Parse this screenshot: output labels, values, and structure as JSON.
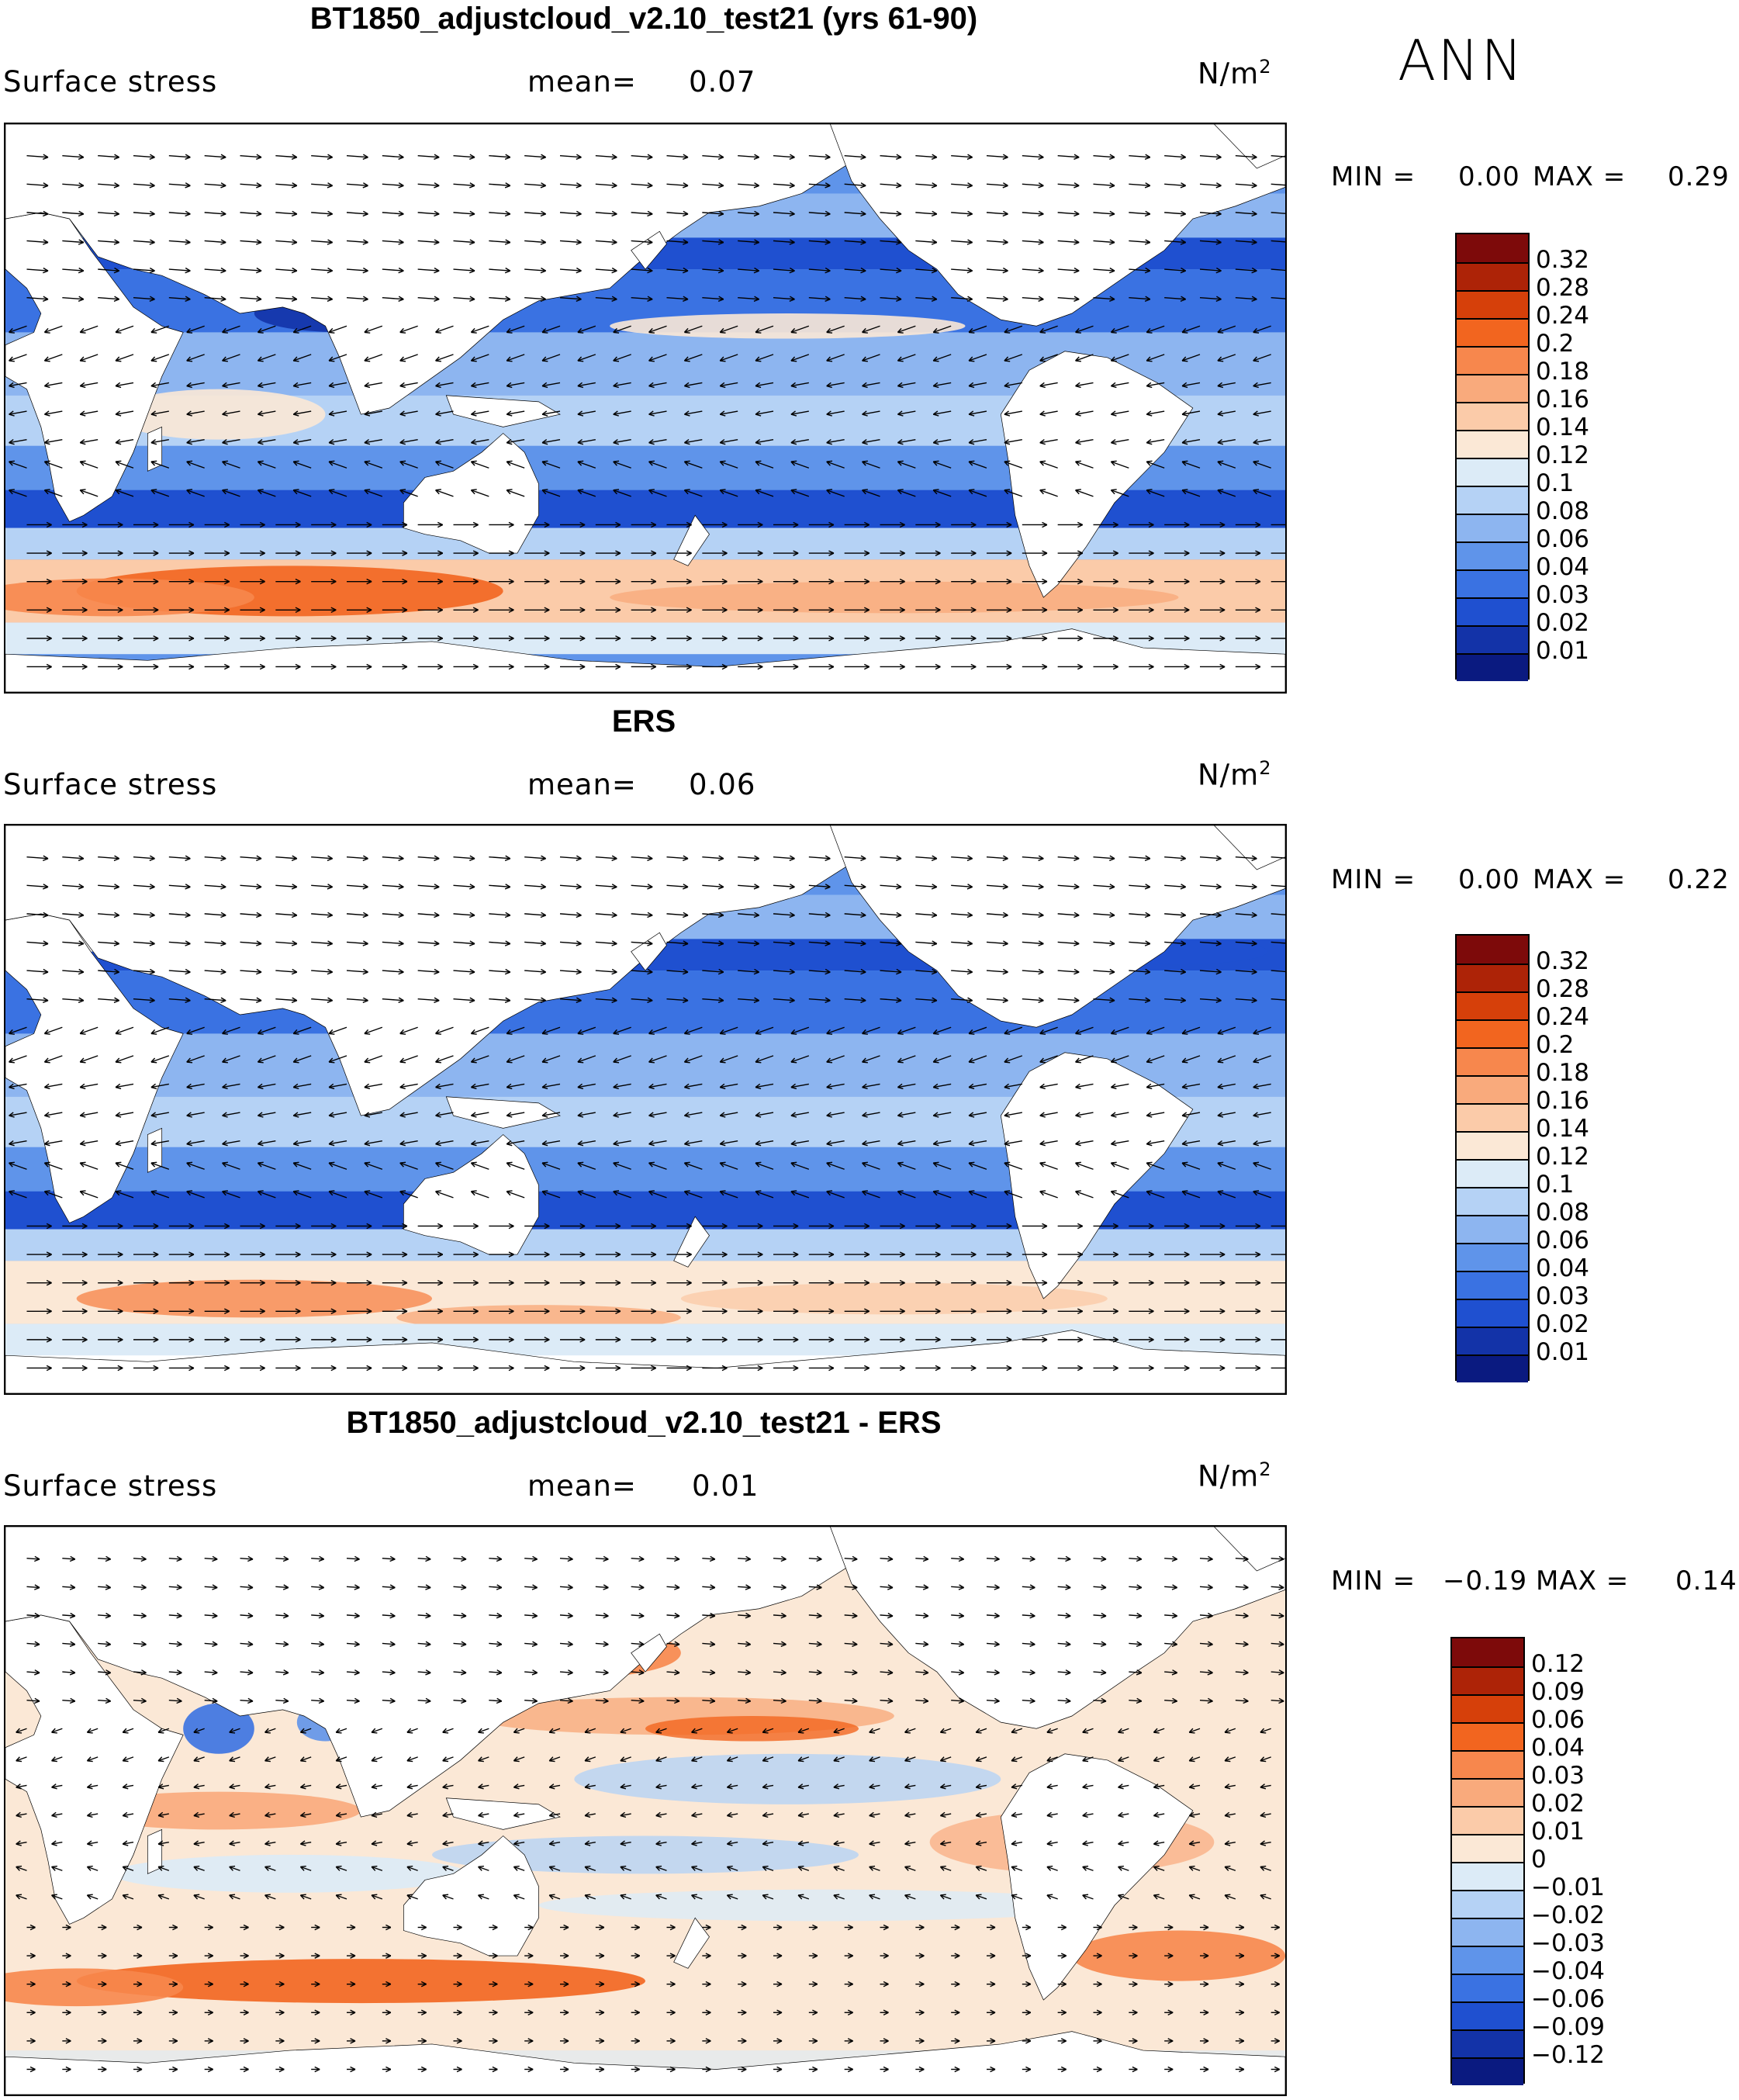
{
  "season": "ANN",
  "panels": [
    {
      "title": "BT1850_adjustcloud_v2.10_test21 (yrs 61-90)",
      "variable": "Surface stress",
      "mean_label": "mean=",
      "mean_value": "0.07",
      "units": "N/m",
      "units_sup": "2",
      "min_label": "MIN =",
      "min_value": "0.00",
      "max_label": "MAX =",
      "max_value": "0.29",
      "palette": "sequential",
      "colorbar_ticks": [
        "0.32",
        "0.28",
        "0.24",
        "0.2",
        "0.18",
        "0.16",
        "0.14",
        "0.12",
        "0.1",
        "0.08",
        "0.06",
        "0.04",
        "0.03",
        "0.02",
        "0.01"
      ],
      "colors": [
        "#7d0a0a",
        "#ad2307",
        "#d6400a",
        "#f2651f",
        "#f7874d",
        "#f9aa7c",
        "#fbcba9",
        "#fbe8d6",
        "#dcebf7",
        "#b5d2f5",
        "#8db5f0",
        "#5f94ea",
        "#3a72e2",
        "#1f50d0",
        "#1333a8",
        "#0a1a80"
      ]
    },
    {
      "title": "ERS",
      "variable": "Surface stress",
      "mean_label": "mean=",
      "mean_value": "0.06",
      "units": "N/m",
      "units_sup": "2",
      "min_label": "MIN =",
      "min_value": "0.00",
      "max_label": "MAX =",
      "max_value": "0.22",
      "palette": "sequential",
      "colorbar_ticks": [
        "0.32",
        "0.28",
        "0.24",
        "0.2",
        "0.18",
        "0.16",
        "0.14",
        "0.12",
        "0.1",
        "0.08",
        "0.06",
        "0.04",
        "0.03",
        "0.02",
        "0.01"
      ],
      "colors": [
        "#7d0a0a",
        "#ad2307",
        "#d6400a",
        "#f2651f",
        "#f7874d",
        "#f9aa7c",
        "#fbcba9",
        "#fbe8d6",
        "#dcebf7",
        "#b5d2f5",
        "#8db5f0",
        "#5f94ea",
        "#3a72e2",
        "#1f50d0",
        "#1333a8",
        "#0a1a80"
      ]
    },
    {
      "title": "BT1850_adjustcloud_v2.10_test21 - ERS",
      "variable": "Surface stress",
      "mean_label": "mean=",
      "mean_value": "0.01",
      "units": "N/m",
      "units_sup": "2",
      "min_label": "MIN =",
      "min_value": "−0.19",
      "max_label": "MAX =",
      "max_value": "0.14",
      "palette": "diverging",
      "colorbar_ticks": [
        "0.12",
        "0.09",
        "0.06",
        "0.04",
        "0.03",
        "0.02",
        "0.01",
        "0",
        "−0.01",
        "−0.02",
        "−0.03",
        "−0.04",
        "−0.06",
        "−0.09",
        "−0.12"
      ],
      "colors": [
        "#7d0a0a",
        "#ad2307",
        "#d6400a",
        "#f2651f",
        "#f7874d",
        "#f9aa7c",
        "#fbcba9",
        "#fbe8d6",
        "#dcebf7",
        "#b5d2f5",
        "#8db5f0",
        "#5f94ea",
        "#3a72e2",
        "#1f50d0",
        "#1333a8",
        "#0a1a80"
      ]
    }
  ]
}
